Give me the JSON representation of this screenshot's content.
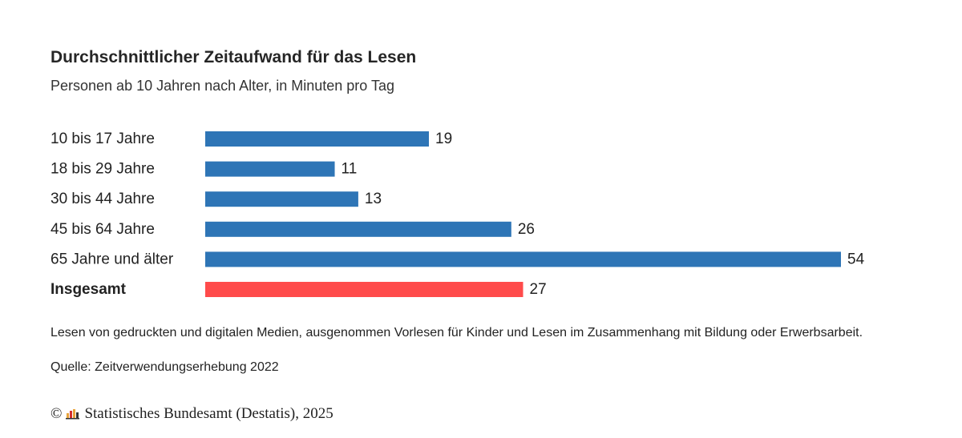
{
  "chart_data": {
    "type": "bar",
    "orientation": "horizontal",
    "title": "Durchschnittlicher Zeitaufwand für das Lesen",
    "subtitle": "Personen ab 10 Jahren nach Alter, in Minuten pro Tag",
    "categories": [
      "10 bis 17 Jahre",
      "18 bis 29 Jahre",
      "30 bis 44 Jahre",
      "45 bis 64 Jahre",
      "65 Jahre und älter",
      "Insgesamt"
    ],
    "values": [
      19,
      11,
      13,
      26,
      54,
      27
    ],
    "value_labels": [
      "19",
      "11",
      "13",
      "26",
      "54",
      "27"
    ],
    "highlight_category": "Insgesamt",
    "xlim": [
      0,
      54
    ],
    "grid": false,
    "legend": "none",
    "colors": {
      "bar": "#2e75b6",
      "highlight": "#ff4b4b"
    }
  },
  "footer": {
    "note": "Lesen von gedruckten und digitalen Medien, ausgenommen Vorlesen für Kinder und Lesen im Zusammenhang mit Bildung oder Erwerbsarbeit.",
    "source": "Quelle: Zeitverwendungserhebung 2022",
    "copyright_symbol": "©",
    "copyright_text": "Statistisches Bundesamt (Destatis), 2025",
    "logo_icon": "destatis-logo-icon"
  }
}
